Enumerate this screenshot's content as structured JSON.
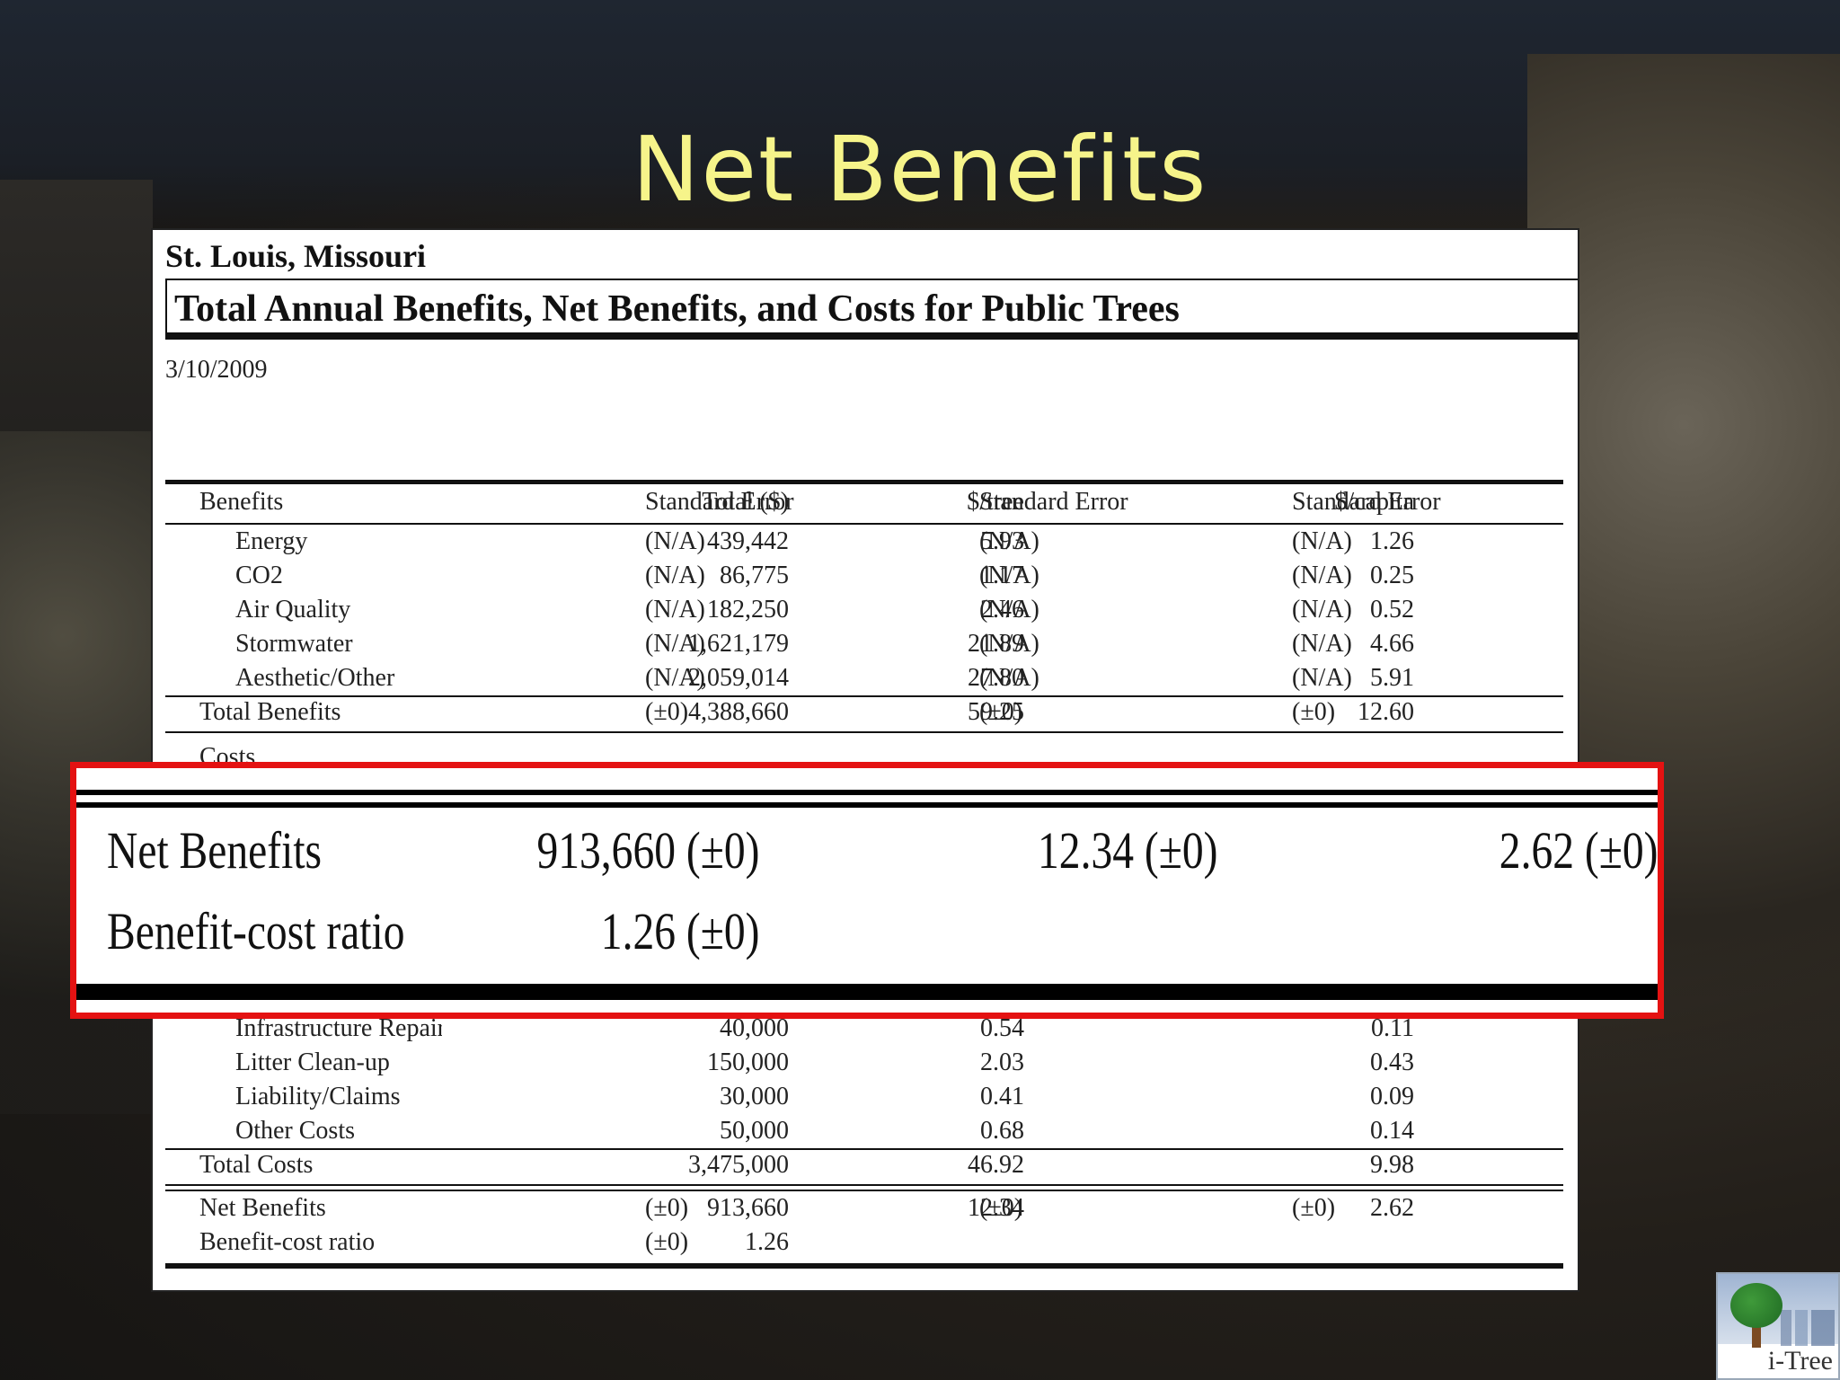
{
  "slide": {
    "title": "Net Benefits"
  },
  "report": {
    "city": "St. Louis, Missouri",
    "title": "Total Annual Benefits, Net Benefits, and Costs for Public Trees",
    "date": "3/10/2009",
    "headers": {
      "benefits": "Benefits",
      "total": "Total ($)",
      "se1": "Standard Error",
      "per_tree": "$/tree",
      "se2": "Standard Error",
      "per_capita": "$/capita",
      "se3": "Standard Error"
    },
    "benefit_rows": [
      {
        "label": "Energy",
        "total": "439,442",
        "se1": "(N/A)",
        "tree": "5.93",
        "se2": "(N/A)",
        "capita": "1.26",
        "se3": "(N/A)"
      },
      {
        "label": "CO2",
        "total": "86,775",
        "se1": "(N/A)",
        "tree": "1.17",
        "se2": "(N/A)",
        "capita": "0.25",
        "se3": "(N/A)"
      },
      {
        "label": "Air Quality",
        "total": "182,250",
        "se1": "(N/A)",
        "tree": "2.46",
        "se2": "(N/A)",
        "capita": "0.52",
        "se3": "(N/A)"
      },
      {
        "label": "Stormwater",
        "total": "1,621,179",
        "se1": "(N/A)",
        "tree": "21.89",
        "se2": "(N/A)",
        "capita": "4.66",
        "se3": "(N/A)"
      },
      {
        "label": "Aesthetic/Other",
        "total": "2,059,014",
        "se1": "(N/A)",
        "tree": "27.80",
        "se2": "(N/A)",
        "capita": "5.91",
        "se3": "(N/A)"
      }
    ],
    "total_benefits": {
      "label": "Total Benefits",
      "total": "4,388,660",
      "se1": "(±0)",
      "tree": "59.25",
      "se2": "(±0)",
      "capita": "12.60",
      "se3": "(±0)"
    },
    "costs_label": "Costs",
    "cost_rows": [
      {
        "label": "Infrastructure Repair",
        "total": "40,000",
        "tree": "0.54",
        "capita": "0.11"
      },
      {
        "label": "Litter Clean-up",
        "total": "150,000",
        "tree": "2.03",
        "capita": "0.43"
      },
      {
        "label": "Liability/Claims",
        "total": "30,000",
        "tree": "0.41",
        "capita": "0.09"
      },
      {
        "label": "Other Costs",
        "total": "50,000",
        "tree": "0.68",
        "capita": "0.14"
      }
    ],
    "total_costs": {
      "label": "Total Costs",
      "total": "3,475,000",
      "tree": "46.92",
      "capita": "9.98"
    },
    "net_benefits": {
      "label": "Net Benefits",
      "total": "913,660",
      "se1": "(±0)",
      "tree": "12.34",
      "se2": "(±0)",
      "capita": "2.62",
      "se3": "(±0)"
    },
    "bcr": {
      "label": "Benefit-cost ratio",
      "total": "1.26",
      "se1": "(±0)"
    }
  },
  "zoom": {
    "net_label": "Net Benefits",
    "net_total": "913,660 (±0)",
    "net_tree": "12.34 (±0)",
    "net_capita": "2.62 (±0)",
    "bcr_label": "Benefit-cost ratio",
    "bcr_value": "1.26  (±0)"
  },
  "logo": {
    "text": "i-Tree"
  },
  "colors": {
    "title": "#f6f48a",
    "highlight": "#e41212"
  }
}
